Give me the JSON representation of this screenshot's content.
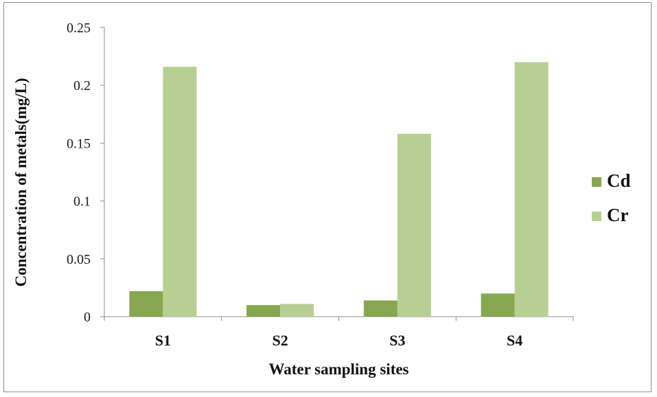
{
  "chart_data": {
    "type": "bar",
    "title": "",
    "xlabel": "Water sampling sites",
    "ylabel": "Concentration of metals(mg/L)",
    "categories": [
      "S1",
      "S2",
      "S3",
      "S4"
    ],
    "series": [
      {
        "name": "Cd",
        "values": [
          0.022,
          0.01,
          0.014,
          0.02
        ],
        "color": "#86a74f"
      },
      {
        "name": "Cr",
        "values": [
          0.216,
          0.011,
          0.158,
          0.22
        ],
        "color": "#b8cf93"
      }
    ],
    "ylim": [
      0,
      0.25
    ],
    "yticks": [
      "0",
      "0.05",
      "0.1",
      "0.15",
      "0.2",
      "0.25"
    ],
    "grid": false,
    "legend_position": "right"
  }
}
